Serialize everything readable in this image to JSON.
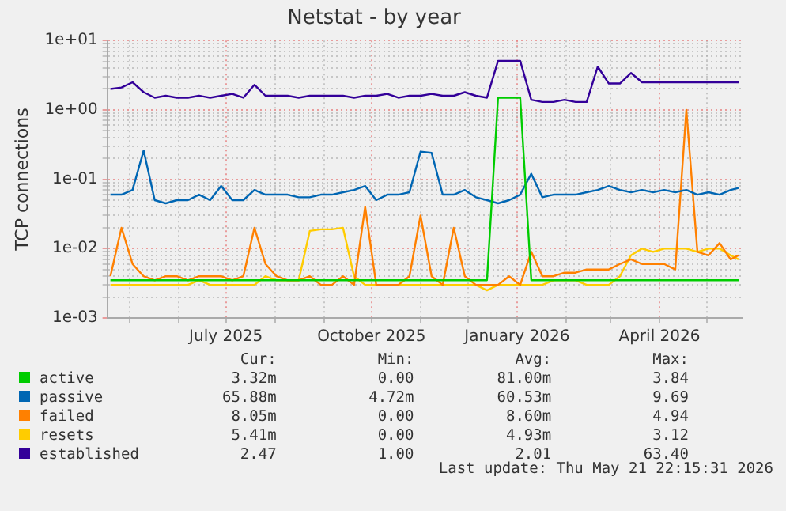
{
  "chart_data": {
    "type": "line",
    "title": "Netstat - by year",
    "ylabel": "TCP connections",
    "log": "y",
    "grid": true,
    "legend": "bottom",
    "marker": "none",
    "line_style": "solid",
    "x": [
      "2025-04-19",
      "2025-04-26",
      "2025-05-03",
      "2025-05-10",
      "2025-05-17",
      "2025-05-24",
      "2025-05-31",
      "2025-06-07",
      "2025-06-14",
      "2025-06-21",
      "2025-06-28",
      "2025-07-05",
      "2025-07-12",
      "2025-07-19",
      "2025-07-26",
      "2025-08-02",
      "2025-08-09",
      "2025-08-16",
      "2025-08-23",
      "2025-08-30",
      "2025-09-06",
      "2025-09-13",
      "2025-09-20",
      "2025-09-27",
      "2025-10-04",
      "2025-10-11",
      "2025-10-18",
      "2025-10-25",
      "2025-11-01",
      "2025-11-08",
      "2025-11-15",
      "2025-11-22",
      "2025-11-29",
      "2025-12-06",
      "2025-12-13",
      "2025-12-20",
      "2025-12-27",
      "2026-01-03",
      "2026-01-10",
      "2026-01-17",
      "2026-01-24",
      "2026-01-31",
      "2026-02-07",
      "2026-02-14",
      "2026-02-21",
      "2026-02-28",
      "2026-03-07",
      "2026-03-14",
      "2026-03-21",
      "2026-03-28",
      "2026-04-04",
      "2026-04-11",
      "2026-04-18",
      "2026-04-25",
      "2026-05-02",
      "2026-05-09",
      "2026-05-16",
      "2026-05-21"
    ],
    "xlim": [
      "2025-04-17",
      "2026-05-23"
    ],
    "xticks": [
      {
        "value": "2025-05-01",
        "label": null
      },
      {
        "value": "2025-06-01",
        "label": null
      },
      {
        "value": "2025-07-01",
        "label": "July 2025"
      },
      {
        "value": "2025-08-01",
        "label": null
      },
      {
        "value": "2025-09-01",
        "label": null
      },
      {
        "value": "2025-10-01",
        "label": "October 2025"
      },
      {
        "value": "2025-11-01",
        "label": null
      },
      {
        "value": "2025-12-01",
        "label": null
      },
      {
        "value": "2026-01-01",
        "label": "January 2026"
      },
      {
        "value": "2026-02-01",
        "label": null
      },
      {
        "value": "2026-03-01",
        "label": null
      },
      {
        "value": "2026-04-01",
        "label": "April 2026"
      },
      {
        "value": "2026-05-01",
        "label": null
      }
    ],
    "ylim": [
      0.001,
      10
    ],
    "yticks": [
      {
        "value": 0.001,
        "label": "1e-03"
      },
      {
        "value": 0.002,
        "label": null
      },
      {
        "value": 0.003,
        "label": null
      },
      {
        "value": 0.004,
        "label": null
      },
      {
        "value": 0.005,
        "label": null
      },
      {
        "value": 0.006,
        "label": null
      },
      {
        "value": 0.007,
        "label": null
      },
      {
        "value": 0.008,
        "label": null
      },
      {
        "value": 0.009,
        "label": null
      },
      {
        "value": 0.01,
        "label": "1e-02"
      },
      {
        "value": 0.02,
        "label": null
      },
      {
        "value": 0.03,
        "label": null
      },
      {
        "value": 0.04,
        "label": null
      },
      {
        "value": 0.05,
        "label": null
      },
      {
        "value": 0.06,
        "label": null
      },
      {
        "value": 0.07,
        "label": null
      },
      {
        "value": 0.08,
        "label": null
      },
      {
        "value": 0.09,
        "label": null
      },
      {
        "value": 0.1,
        "label": "1e-01"
      },
      {
        "value": 0.2,
        "label": null
      },
      {
        "value": 0.3,
        "label": null
      },
      {
        "value": 0.4,
        "label": null
      },
      {
        "value": 0.5,
        "label": null
      },
      {
        "value": 0.6,
        "label": null
      },
      {
        "value": 0.7,
        "label": null
      },
      {
        "value": 0.8,
        "label": null
      },
      {
        "value": 0.9,
        "label": null
      },
      {
        "value": 1,
        "label": "1e+00"
      },
      {
        "value": 2,
        "label": null
      },
      {
        "value": 3,
        "label": null
      },
      {
        "value": 4,
        "label": null
      },
      {
        "value": 5,
        "label": null
      },
      {
        "value": 6,
        "label": null
      },
      {
        "value": 7,
        "label": null
      },
      {
        "value": 8,
        "label": null
      },
      {
        "value": 9,
        "label": null
      },
      {
        "value": 10,
        "label": "1e+01"
      }
    ],
    "series": [
      {
        "name": "active",
        "color": "#00cc00",
        "values": [
          0.0035,
          0.0035,
          0.0035,
          0.0035,
          0.0035,
          0.0035,
          0.0035,
          0.0035,
          0.0035,
          0.0035,
          0.0035,
          0.0035,
          0.0035,
          0.0035,
          0.0035,
          0.0035,
          0.0035,
          0.0035,
          0.0035,
          0.0035,
          0.0035,
          0.0035,
          0.0035,
          0.0035,
          0.0035,
          0.0035,
          0.0035,
          0.0035,
          0.0035,
          0.0035,
          0.0035,
          0.0035,
          0.0035,
          0.0035,
          0.0035,
          1.5,
          1.5,
          1.5,
          0.0035,
          0.0035,
          0.0035,
          0.0035,
          0.0035,
          0.0035,
          0.0035,
          0.0035,
          0.0035,
          0.0035,
          0.0035,
          0.0035,
          0.0035,
          0.0035,
          0.0035,
          0.0035,
          0.0035,
          0.0035,
          0.0035,
          0.0035
        ]
      },
      {
        "name": "passive",
        "color": "#0066b3",
        "values": [
          0.06,
          0.06,
          0.07,
          0.26,
          0.05,
          0.045,
          0.05,
          0.05,
          0.06,
          0.05,
          0.08,
          0.05,
          0.05,
          0.07,
          0.06,
          0.06,
          0.06,
          0.055,
          0.055,
          0.06,
          0.06,
          0.065,
          0.07,
          0.08,
          0.05,
          0.06,
          0.06,
          0.065,
          0.25,
          0.24,
          0.06,
          0.06,
          0.07,
          0.055,
          0.05,
          0.045,
          0.05,
          0.06,
          0.12,
          0.055,
          0.06,
          0.06,
          0.06,
          0.065,
          0.07,
          0.08,
          0.07,
          0.065,
          0.07,
          0.065,
          0.07,
          0.065,
          0.07,
          0.06,
          0.065,
          0.06,
          0.07,
          0.075
        ]
      },
      {
        "name": "failed",
        "color": "#ff8000",
        "values": [
          0.004,
          0.02,
          0.006,
          0.004,
          0.0035,
          0.004,
          0.004,
          0.0035,
          0.004,
          0.004,
          0.004,
          0.0035,
          0.004,
          0.02,
          0.006,
          0.004,
          0.0035,
          0.0035,
          0.004,
          0.003,
          0.003,
          0.004,
          0.003,
          0.04,
          0.003,
          0.003,
          0.003,
          0.004,
          0.03,
          0.004,
          0.003,
          0.02,
          0.004,
          0.003,
          0.003,
          0.003,
          0.004,
          0.003,
          0.009,
          0.004,
          0.004,
          0.0045,
          0.0045,
          0.005,
          0.005,
          0.005,
          0.006,
          0.007,
          0.006,
          0.006,
          0.006,
          0.005,
          1.0,
          0.009,
          0.008,
          0.012,
          0.007,
          0.008
        ]
      },
      {
        "name": "resets",
        "color": "#ffcc00",
        "values": [
          0.003,
          0.003,
          0.003,
          0.003,
          0.003,
          0.003,
          0.003,
          0.003,
          0.0035,
          0.003,
          0.003,
          0.003,
          0.003,
          0.003,
          0.004,
          0.0035,
          0.0035,
          0.0035,
          0.018,
          0.019,
          0.019,
          0.02,
          0.004,
          0.003,
          0.003,
          0.003,
          0.003,
          0.003,
          0.003,
          0.003,
          0.003,
          0.003,
          0.003,
          0.003,
          0.0025,
          0.003,
          0.003,
          0.003,
          0.003,
          0.003,
          0.0035,
          0.0035,
          0.0035,
          0.003,
          0.003,
          0.003,
          0.004,
          0.008,
          0.01,
          0.009,
          0.01,
          0.01,
          0.01,
          0.009,
          0.01,
          0.01,
          0.008,
          0.007
        ]
      },
      {
        "name": "established",
        "color": "#330099",
        "values": [
          2.0,
          2.1,
          2.5,
          1.8,
          1.5,
          1.6,
          1.5,
          1.5,
          1.6,
          1.5,
          1.6,
          1.7,
          1.5,
          2.3,
          1.6,
          1.6,
          1.6,
          1.5,
          1.6,
          1.6,
          1.6,
          1.6,
          1.5,
          1.6,
          1.6,
          1.7,
          1.5,
          1.6,
          1.6,
          1.7,
          1.6,
          1.6,
          1.8,
          1.6,
          1.5,
          5.1,
          5.1,
          5.1,
          1.4,
          1.3,
          1.3,
          1.4,
          1.3,
          1.3,
          4.2,
          2.4,
          2.4,
          3.4,
          2.5,
          2.5,
          2.5,
          2.5,
          2.5,
          2.5,
          2.5,
          2.5,
          2.5,
          2.5
        ]
      }
    ],
    "annotations": [
      "Cur:",
      "Min:",
      "Avg:",
      "Max:",
      "3.32m",
      "0.00",
      "81.00m",
      "3.84",
      "65.88m",
      "4.72m",
      "60.53m",
      "9.69",
      "8.05m",
      "0.00",
      "8.60m",
      "4.94",
      "5.41m",
      "0.00",
      "4.93m",
      "3.12",
      "2.47",
      "1.00",
      "2.01",
      "63.40",
      "Last update: Thu May 21 22:15:31 2026"
    ]
  }
}
